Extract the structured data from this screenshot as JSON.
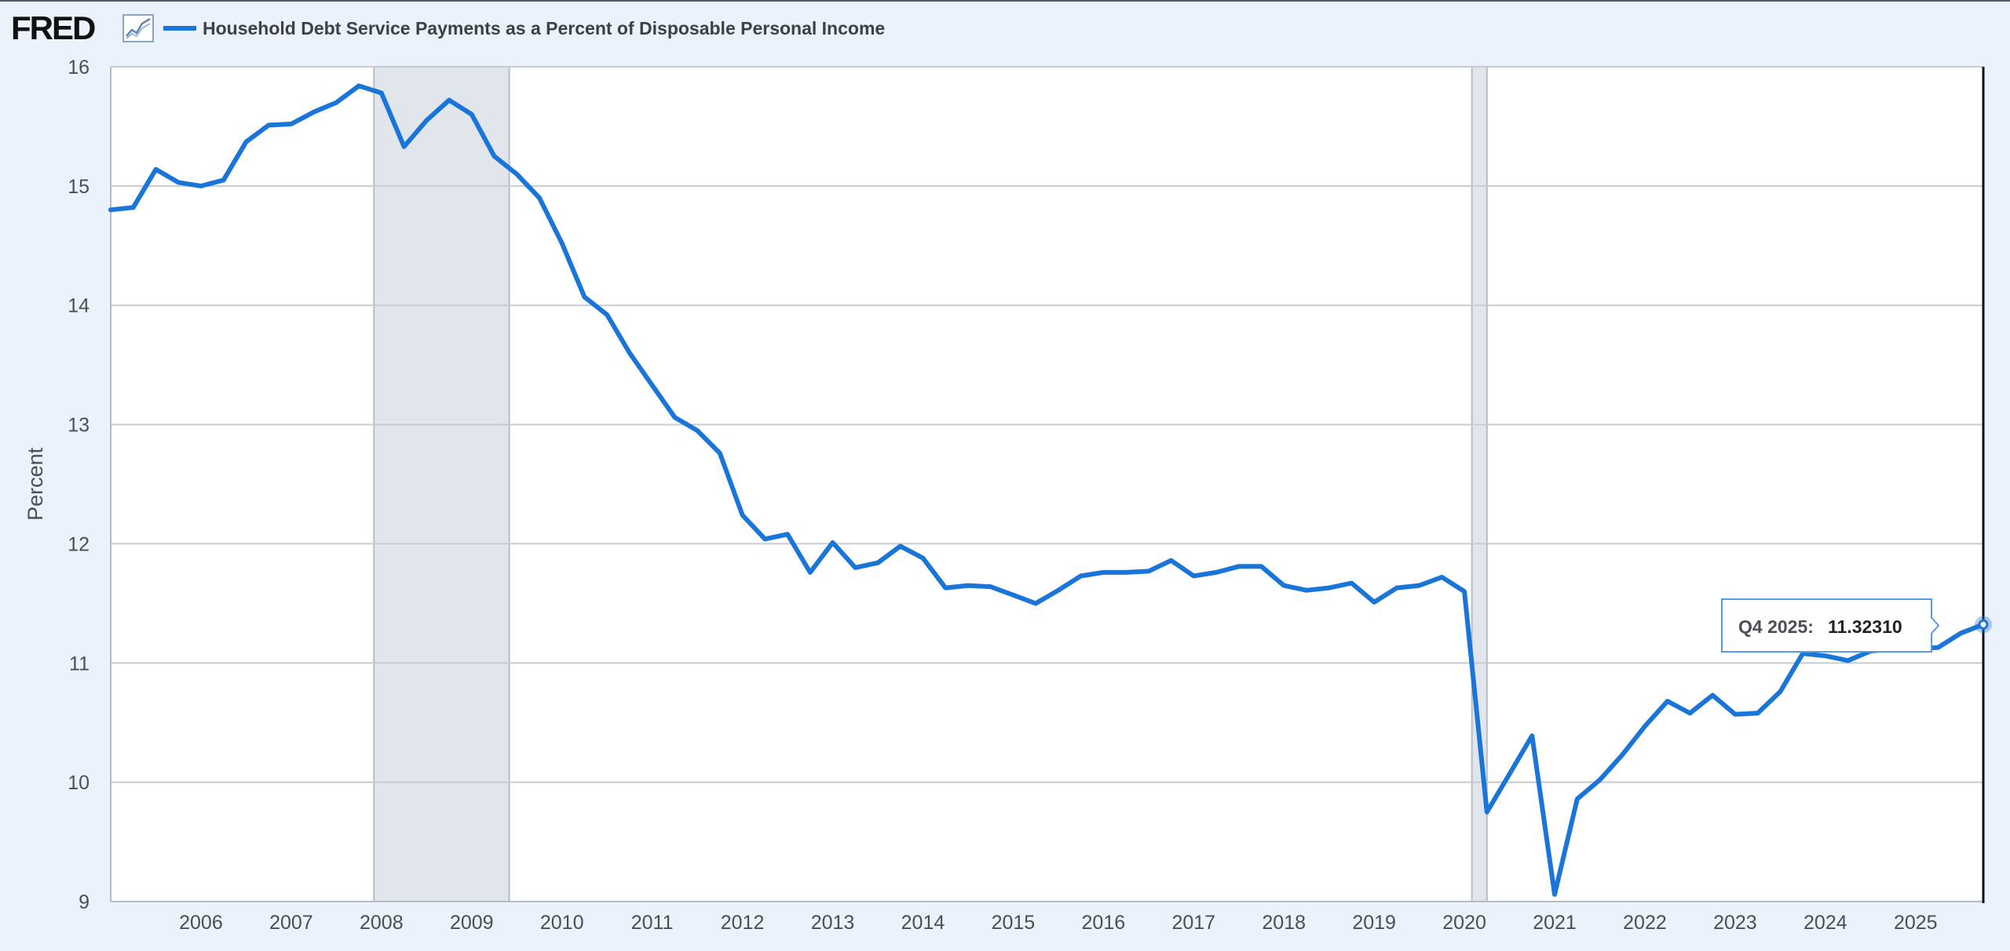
{
  "header": {
    "logo_text": "FRED",
    "logo_icon": "line-chart-icon",
    "series_title": "Household Debt Service Payments as a Percent of Disposable Personal Income"
  },
  "colors": {
    "line": "#1a75d8",
    "background": "#ebf2fb",
    "plot_background": "#ffffff",
    "recession_shading": "#e1e5ec",
    "gridline": "#c8cbd0"
  },
  "chart_data": {
    "type": "line",
    "title": "Household Debt Service Payments as a Percent of Disposable Personal Income",
    "ylabel": "Percent",
    "xlabel": "",
    "ylim": [
      9,
      16
    ],
    "xlim": [
      2005.0,
      2025.75
    ],
    "yticks": [
      9,
      10,
      11,
      12,
      13,
      14,
      15,
      16
    ],
    "xticks": [
      "2006",
      "2007",
      "2008",
      "2009",
      "2010",
      "2011",
      "2012",
      "2013",
      "2014",
      "2015",
      "2016",
      "2017",
      "2018",
      "2019",
      "2020",
      "2021",
      "2022",
      "2023",
      "2024",
      "2025"
    ],
    "grid": "horizontal",
    "legend_position": "top-left",
    "recessions": [
      {
        "start": "2007-12",
        "end": "2009-06"
      },
      {
        "start": "2020-02",
        "end": "2020-04"
      }
    ],
    "series": [
      {
        "name": "Household Debt Service Payments as a Percent of Disposable Personal Income",
        "x": [
          "2005-01-01",
          "2005-04-01",
          "2005-07-01",
          "2005-10-01",
          "2006-01-01",
          "2006-04-01",
          "2006-07-01",
          "2006-10-01",
          "2007-01-01",
          "2007-04-01",
          "2007-07-01",
          "2007-10-01",
          "2008-01-01",
          "2008-04-01",
          "2008-07-01",
          "2008-10-01",
          "2009-01-01",
          "2009-04-01",
          "2009-07-01",
          "2009-10-01",
          "2010-01-01",
          "2010-04-01",
          "2010-07-01",
          "2010-10-01",
          "2011-01-01",
          "2011-04-01",
          "2011-07-01",
          "2011-10-01",
          "2012-01-01",
          "2012-04-01",
          "2012-07-01",
          "2012-10-01",
          "2013-01-01",
          "2013-04-01",
          "2013-07-01",
          "2013-10-01",
          "2014-01-01",
          "2014-04-01",
          "2014-07-01",
          "2014-10-01",
          "2015-01-01",
          "2015-04-01",
          "2015-07-01",
          "2015-10-01",
          "2016-01-01",
          "2016-04-01",
          "2016-07-01",
          "2016-10-01",
          "2017-01-01",
          "2017-04-01",
          "2017-07-01",
          "2017-10-01",
          "2018-01-01",
          "2018-04-01",
          "2018-07-01",
          "2018-10-01",
          "2019-01-01",
          "2019-04-01",
          "2019-07-01",
          "2019-10-01",
          "2020-01-01",
          "2020-04-01",
          "2020-07-01",
          "2020-10-01",
          "2021-01-01",
          "2021-04-01",
          "2021-07-01",
          "2021-10-01",
          "2022-01-01",
          "2022-04-01",
          "2022-07-01",
          "2022-10-01",
          "2023-01-01",
          "2023-04-01",
          "2023-07-01",
          "2023-10-01",
          "2024-01-01",
          "2024-04-01",
          "2024-07-01",
          "2024-10-01",
          "2025-01-01",
          "2025-04-01",
          "2025-07-01",
          "2025-10-01"
        ],
        "values": [
          14.8,
          14.82,
          15.14,
          15.03,
          15.0,
          15.05,
          15.37,
          15.51,
          15.52,
          15.62,
          15.7,
          15.84,
          15.78,
          15.33,
          15.55,
          15.72,
          15.6,
          15.25,
          15.1,
          14.9,
          14.52,
          14.07,
          13.92,
          13.6,
          13.33,
          13.06,
          12.95,
          12.76,
          12.24,
          12.04,
          12.08,
          11.76,
          12.01,
          11.8,
          11.84,
          11.98,
          11.88,
          11.63,
          11.65,
          11.64,
          11.57,
          11.5,
          11.61,
          11.73,
          11.76,
          11.76,
          11.77,
          11.86,
          11.73,
          11.76,
          11.81,
          11.81,
          11.65,
          11.61,
          11.63,
          11.67,
          11.51,
          11.63,
          11.65,
          11.72,
          11.6,
          9.75,
          10.07,
          10.39,
          9.06,
          9.86,
          10.02,
          10.23,
          10.47,
          10.68,
          10.58,
          10.73,
          10.57,
          10.58,
          10.76,
          11.08,
          11.06,
          11.02,
          11.1,
          11.12,
          11.12,
          11.13,
          11.25,
          11.3231
        ]
      }
    ],
    "tooltip": {
      "label": "Q4 2025:",
      "value": "11.32310"
    }
  }
}
